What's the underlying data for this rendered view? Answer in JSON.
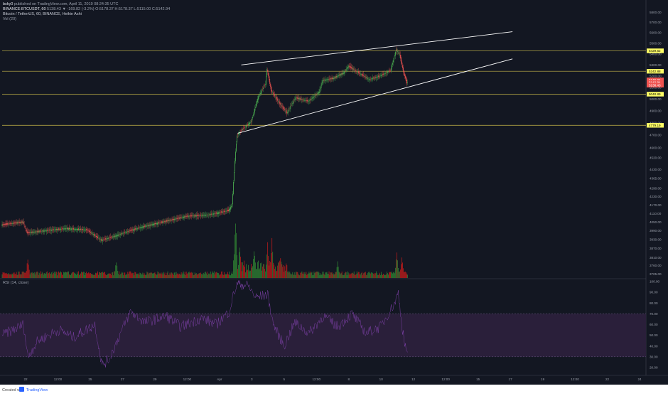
{
  "header": {
    "author": "bsky0",
    "published": "published on TradingView.com, April 11, 2019 08:24:35 UTC",
    "symbol": "BINANCE:BTCUSDT, 60",
    "ohlc": "5138.43 ▼ -169.82 (-3.2%) O:5178.37 H:5178.37 L:5115.00 C:5142.94",
    "line2": "Bitcoin / TetherUS, 60, BINANCE, Heikin Ashi",
    "volume_label": "Vol (20)"
  },
  "rsi_label": "RSI (14, close)",
  "footer": {
    "created_with": "Created with",
    "brand": "TradingView"
  },
  "colors": {
    "background": "#131722",
    "panel_border": "#434651",
    "candle_up": "#4caf50",
    "candle_down": "#ef5350",
    "vol_up": "#2e7d32",
    "vol_down": "#b71c1c",
    "trendline": "#ffffff",
    "horizontal_level": "#c9b84a",
    "rsi_line": "#7b3fa5",
    "rsi_band": "#2a1f3a",
    "level_tag": "#ffff66"
  },
  "chart_data": {
    "type": "candlestick",
    "style": "Heikin Ashi",
    "title": "Bitcoin / TetherUS, 60, BINANCE, Heikin Ashi",
    "x_tick_labels": [
      "22",
      "12:00",
      "25",
      "27",
      "29",
      "12:00",
      "Apr",
      "3",
      "5",
      "12:00",
      "8",
      "10",
      "12",
      "12:00",
      "15",
      "17",
      "19",
      "12:00",
      "22",
      "24"
    ],
    "price_ticks": [
      5800,
      5700,
      5600,
      5500,
      5400,
      5300,
      5200,
      5100,
      5000,
      4900,
      4800,
      4700,
      4600,
      4520,
      4430,
      4365,
      4290,
      4230,
      4170,
      4110,
      4050,
      3990,
      3930,
      3870,
      3810,
      3760,
      3705
    ],
    "price_scale": "log",
    "price_range": [
      3680,
      5830
    ],
    "horizontal_levels": [
      5429.62,
      5242.88,
      5040.89,
      4779.19
    ],
    "price_tags": [
      {
        "value": 5429.62,
        "label": "5429.62",
        "color": "#ffff66"
      },
      {
        "value": 5242.88,
        "label": "5242.88",
        "color": "#ffff66"
      },
      {
        "value": 5146.94,
        "label": "5146.94",
        "color": "#ef5350"
      },
      {
        "value": 5142.94,
        "label": "5142.94",
        "color": "#ef5350"
      },
      {
        "value": 5138.43,
        "label": "5138.43",
        "color": "#ef5350"
      },
      {
        "value": 5040.89,
        "label": "5040.89",
        "color": "#ffff66"
      },
      {
        "value": 4779.19,
        "label": "4779.19",
        "color": "#ffff66"
      }
    ],
    "trendlines": [
      {
        "from_bar": 335,
        "from_price": 5300,
        "to_bar": 715,
        "to_price": 5610
      },
      {
        "from_bar": 330,
        "from_price": 4715,
        "to_bar": 715,
        "to_price": 5355
      }
    ],
    "price_path": [
      [
        0,
        4030
      ],
      [
        30,
        4050
      ],
      [
        36,
        3975
      ],
      [
        60,
        3990
      ],
      [
        90,
        4005
      ],
      [
        120,
        3995
      ],
      [
        140,
        3925
      ],
      [
        160,
        3955
      ],
      [
        180,
        3990
      ],
      [
        200,
        4020
      ],
      [
        230,
        4055
      ],
      [
        260,
        4090
      ],
      [
        290,
        4100
      ],
      [
        318,
        4130
      ],
      [
        323,
        4170
      ],
      [
        327,
        4500
      ],
      [
        330,
        4700
      ],
      [
        340,
        4760
      ],
      [
        350,
        4810
      ],
      [
        360,
        5020
      ],
      [
        370,
        5130
      ],
      [
        372,
        5265
      ],
      [
        378,
        5070
      ],
      [
        390,
        4960
      ],
      [
        400,
        4880
      ],
      [
        412,
        5010
      ],
      [
        430,
        4980
      ],
      [
        445,
        5060
      ],
      [
        450,
        5160
      ],
      [
        465,
        5180
      ],
      [
        480,
        5230
      ],
      [
        486,
        5290
      ],
      [
        500,
        5230
      ],
      [
        515,
        5170
      ],
      [
        530,
        5200
      ],
      [
        545,
        5250
      ],
      [
        553,
        5440
      ],
      [
        558,
        5390
      ],
      [
        563,
        5240
      ],
      [
        568,
        5140
      ]
    ],
    "volume_spikes": [
      [
        36,
        0.32
      ],
      [
        160,
        0.28
      ],
      [
        327,
        1.0
      ],
      [
        333,
        0.55
      ],
      [
        353,
        0.48
      ],
      [
        372,
        0.55
      ],
      [
        378,
        0.6
      ],
      [
        390,
        0.3
      ],
      [
        470,
        0.25
      ],
      [
        553,
        0.42
      ],
      [
        560,
        0.36
      ]
    ],
    "rsi": {
      "label": "RSI (14, close)",
      "ticks": [
        100,
        90,
        80,
        70,
        60,
        50,
        40,
        30,
        20
      ],
      "bands": [
        30,
        70
      ],
      "range": [
        14,
        102
      ],
      "path": [
        [
          0,
          50
        ],
        [
          30,
          60
        ],
        [
          36,
          30
        ],
        [
          50,
          45
        ],
        [
          80,
          55
        ],
        [
          100,
          48
        ],
        [
          130,
          60
        ],
        [
          140,
          22
        ],
        [
          150,
          28
        ],
        [
          170,
          58
        ],
        [
          180,
          72
        ],
        [
          200,
          62
        ],
        [
          230,
          68
        ],
        [
          250,
          58
        ],
        [
          280,
          66
        ],
        [
          300,
          60
        ],
        [
          318,
          72
        ],
        [
          325,
          90
        ],
        [
          330,
          98
        ],
        [
          345,
          96
        ],
        [
          355,
          85
        ],
        [
          372,
          88
        ],
        [
          380,
          60
        ],
        [
          395,
          40
        ],
        [
          410,
          62
        ],
        [
          430,
          52
        ],
        [
          450,
          68
        ],
        [
          470,
          58
        ],
        [
          490,
          70
        ],
        [
          510,
          52
        ],
        [
          530,
          58
        ],
        [
          550,
          80
        ],
        [
          555,
          90
        ],
        [
          560,
          60
        ],
        [
          565,
          38
        ],
        [
          568,
          35
        ]
      ]
    }
  }
}
